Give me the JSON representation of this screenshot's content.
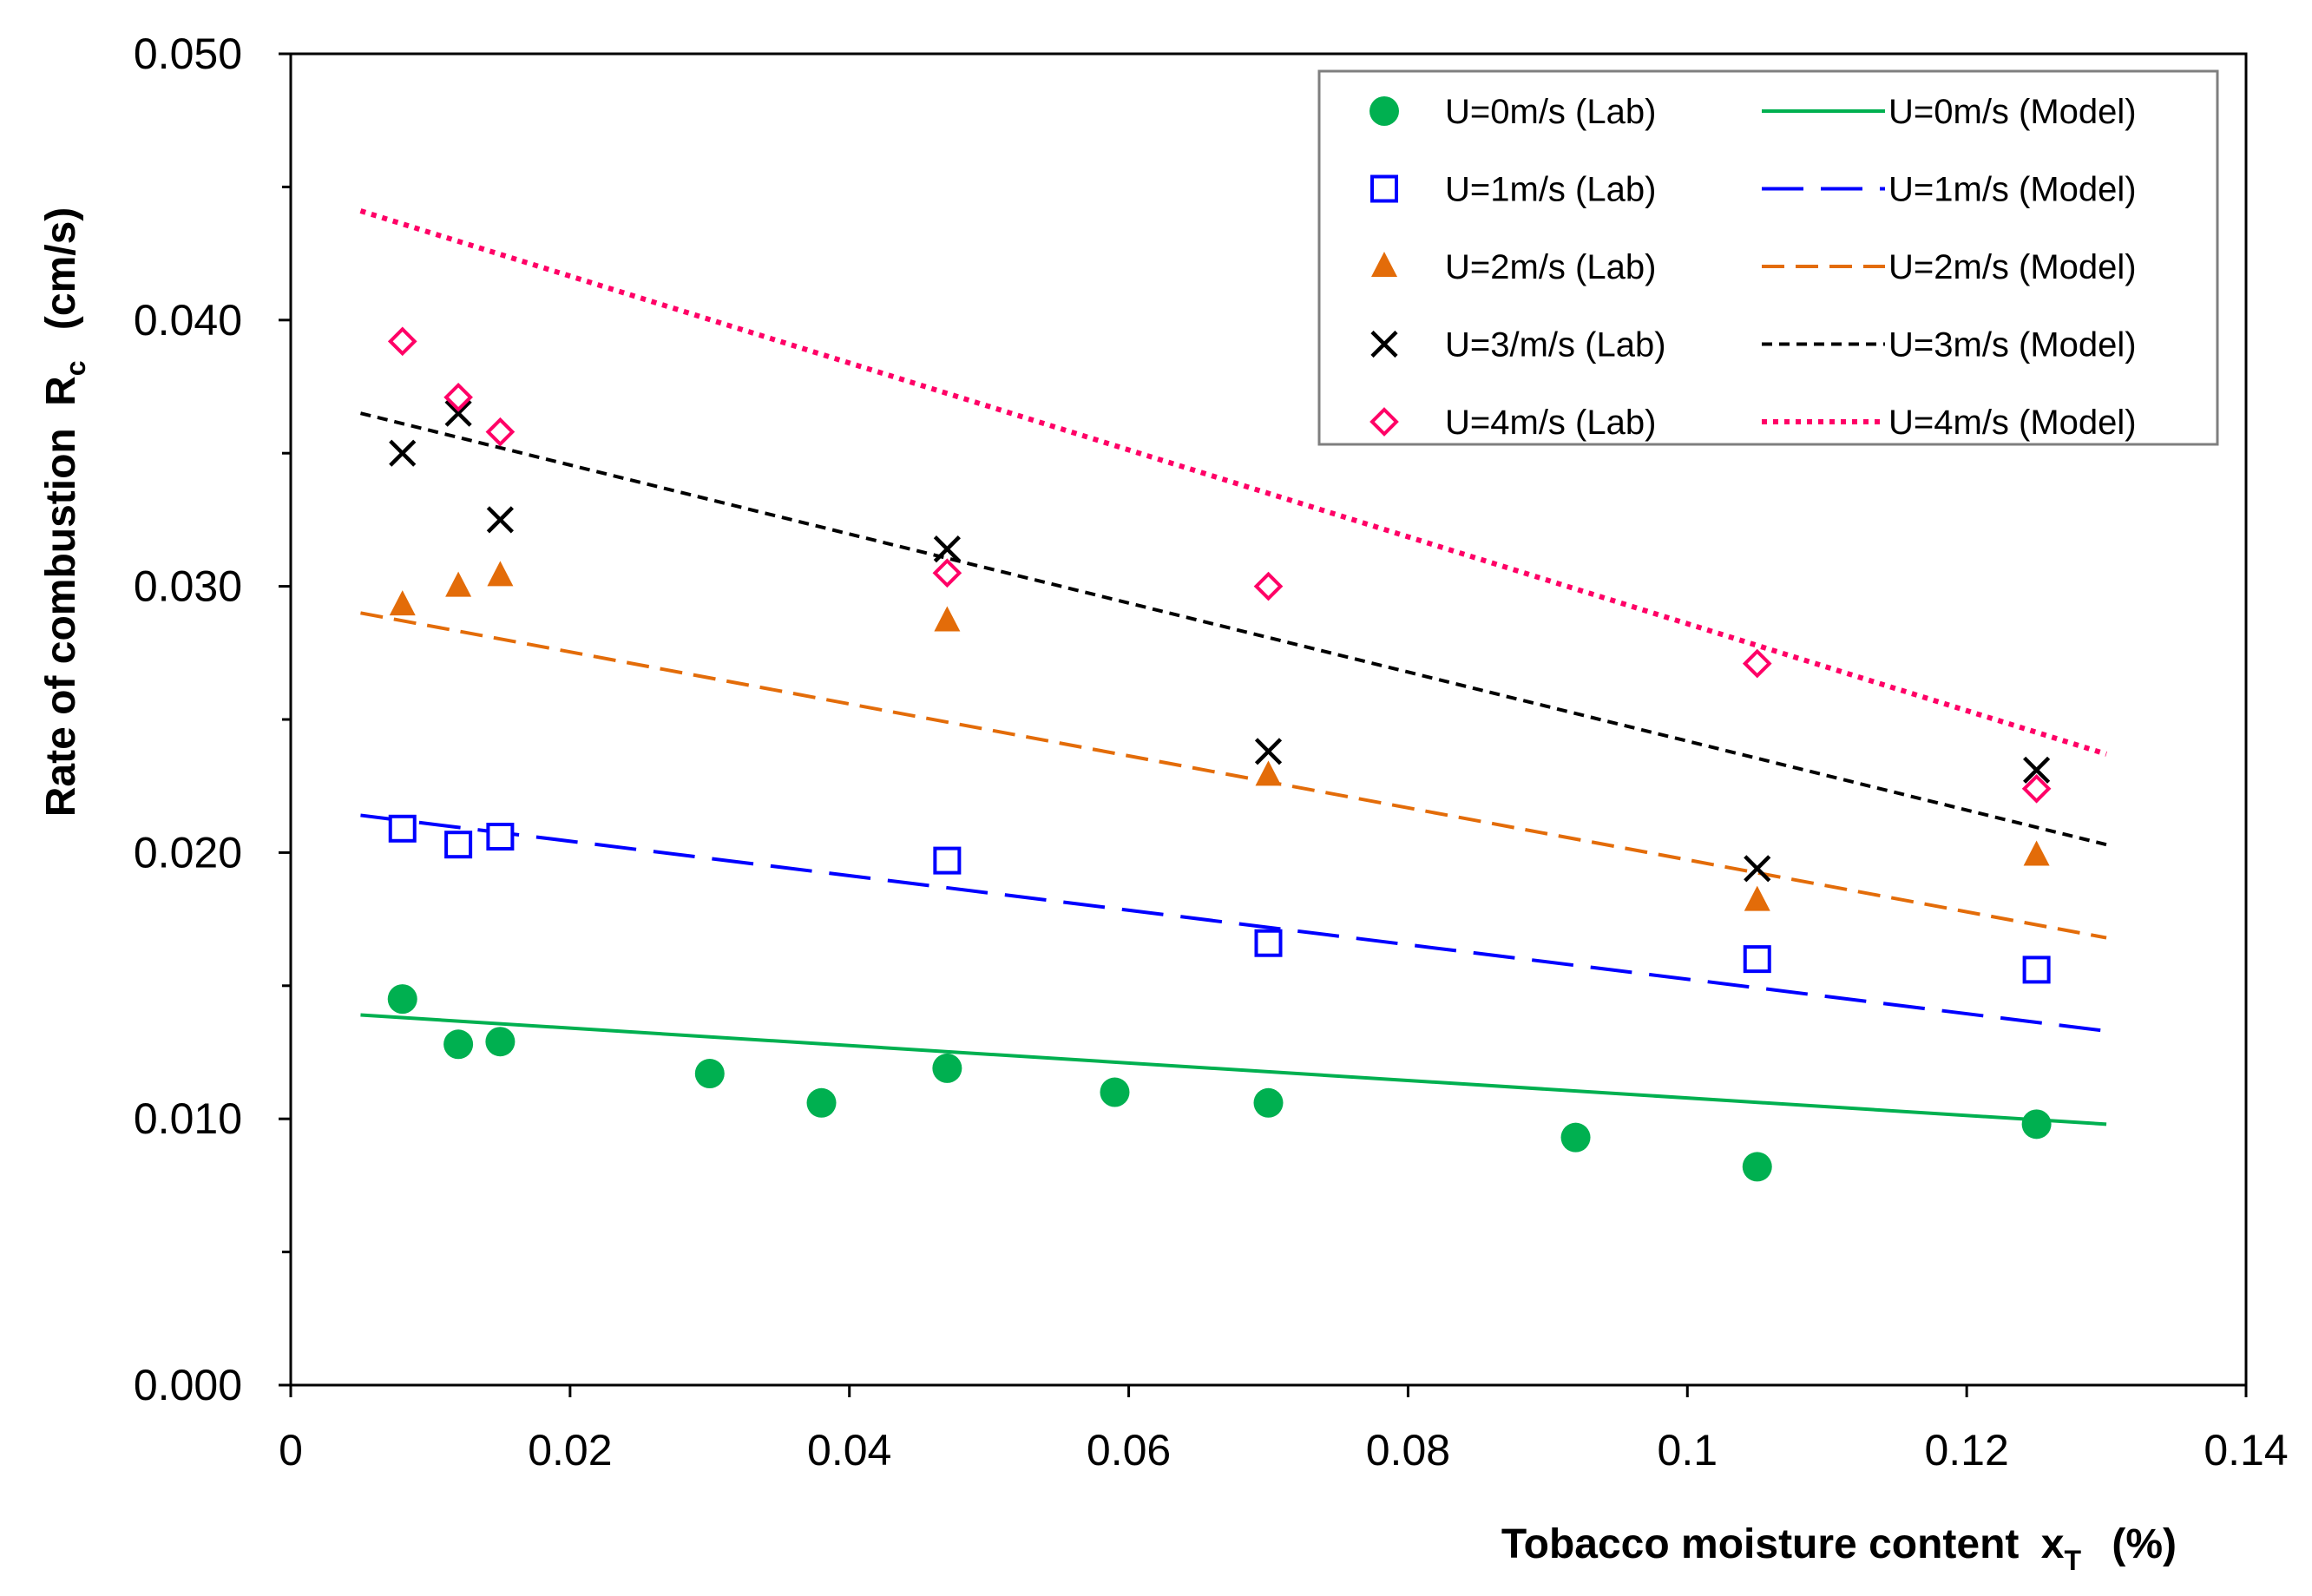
{
  "chart_data": {
    "type": "scatter",
    "xlabel": "Tobacco moisture content",
    "xlabel_symbol": "x",
    "xlabel_sub": "T",
    "xlabel_unit": "(%)",
    "ylabel": "Rate of combustion",
    "ylabel_symbol": "R",
    "ylabel_sub": "c",
    "ylabel_unit": "(cm/s)",
    "xlim": [
      0,
      0.14
    ],
    "ylim": [
      0,
      0.05
    ],
    "x_ticks": [
      0,
      0.02,
      0.04,
      0.06,
      0.08,
      0.1,
      0.12,
      0.14
    ],
    "x_tick_labels": [
      "0",
      "0.02",
      "0.04",
      "0.06",
      "0.08",
      "0.1",
      "0.12",
      "0.14"
    ],
    "y_ticks": [
      0,
      0.01,
      0.02,
      0.03,
      0.04,
      0.05
    ],
    "y_tick_labels": [
      "0.000",
      "0.010",
      "0.020",
      "0.030",
      "0.040",
      "0.050"
    ],
    "y_minor_ticks": [
      0.005,
      0.015,
      0.025,
      0.035,
      0.045
    ],
    "grid": false,
    "legend_position": "top-right",
    "series": [
      {
        "name": "U=0m/s (Lab)",
        "kind": "scatter",
        "marker": "circle",
        "color": "#00b050",
        "x": [
          0.008,
          0.012,
          0.015,
          0.03,
          0.038,
          0.047,
          0.059,
          0.07,
          0.092,
          0.105,
          0.125
        ],
        "y": [
          0.0145,
          0.0128,
          0.0129,
          0.0117,
          0.0106,
          0.0119,
          0.011,
          0.0106,
          0.0093,
          0.0082,
          0.0098
        ]
      },
      {
        "name": "U=1m/s (Lab)",
        "kind": "scatter",
        "marker": "square-open",
        "color": "#0000ff",
        "x": [
          0.008,
          0.012,
          0.015,
          0.047,
          0.07,
          0.105,
          0.125
        ],
        "y": [
          0.0209,
          0.0203,
          0.0206,
          0.0197,
          0.0166,
          0.016,
          0.0156
        ]
      },
      {
        "name": "U=2m/s (Lab)",
        "kind": "scatter",
        "marker": "triangle",
        "color": "#e36c09",
        "x": [
          0.008,
          0.012,
          0.015,
          0.047,
          0.07,
          0.105,
          0.125
        ],
        "y": [
          0.0293,
          0.03,
          0.0304,
          0.0287,
          0.0229,
          0.0182,
          0.0199
        ]
      },
      {
        "name": "U=3/m/s (Lab)",
        "kind": "scatter",
        "marker": "x",
        "color": "#000000",
        "x": [
          0.008,
          0.012,
          0.015,
          0.047,
          0.07,
          0.105,
          0.125
        ],
        "y": [
          0.035,
          0.0365,
          0.0325,
          0.0314,
          0.0238,
          0.0194,
          0.0231
        ]
      },
      {
        "name": "U=4m/s (Lab)",
        "kind": "scatter",
        "marker": "diamond-open",
        "color": "#ff0066",
        "x": [
          0.008,
          0.012,
          0.015,
          0.047,
          0.07,
          0.105,
          0.125
        ],
        "y": [
          0.0392,
          0.0371,
          0.0358,
          0.0305,
          0.03,
          0.0271,
          0.0224
        ]
      },
      {
        "name": "U=0m/s (Model)",
        "kind": "line",
        "dash": "solid",
        "color": "#00b050",
        "x": [
          0.005,
          0.13
        ],
        "y": [
          0.0139,
          0.0098
        ]
      },
      {
        "name": "U=1m/s (Model)",
        "kind": "line",
        "dash": "long-dash",
        "color": "#0000ff",
        "x": [
          0.005,
          0.13
        ],
        "y": [
          0.0214,
          0.0133
        ]
      },
      {
        "name": "U=2m/s (Model)",
        "kind": "line",
        "dash": "dash",
        "color": "#e36c09",
        "x": [
          0.005,
          0.13
        ],
        "y": [
          0.029,
          0.0168
        ]
      },
      {
        "name": "U=3m/s (Model)",
        "kind": "line",
        "dash": "short-dash",
        "color": "#000000",
        "x": [
          0.005,
          0.13
        ],
        "y": [
          0.0365,
          0.0203
        ]
      },
      {
        "name": "U=4m/s (Model)",
        "kind": "line",
        "dash": "dot",
        "color": "#ff0066",
        "x": [
          0.005,
          0.13
        ],
        "y": [
          0.0441,
          0.0237
        ]
      }
    ],
    "legend_order": [
      0,
      5,
      1,
      6,
      2,
      7,
      3,
      8,
      4,
      9
    ]
  }
}
